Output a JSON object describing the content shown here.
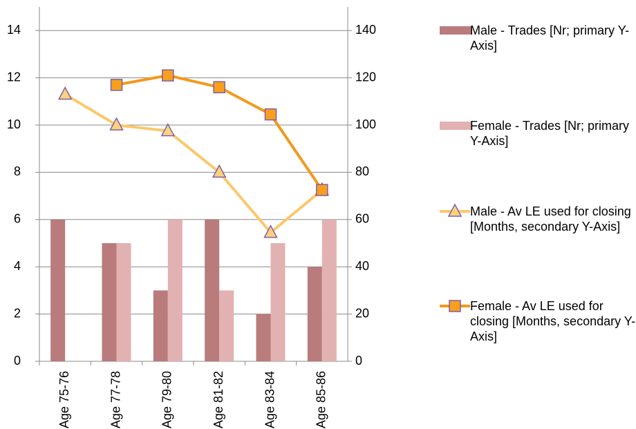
{
  "chart_data": {
    "type": "bar_line",
    "categories": [
      "Age 75-76",
      "Age 77-78",
      "Age 79-80",
      "Age 81-82",
      "Age 83-84",
      "Age 85-86"
    ],
    "series": [
      {
        "name": "Male - Trades [Nr; primary Y-Axis]",
        "type": "bar",
        "color": "#b97b7b",
        "values": [
          6,
          5,
          3,
          6,
          2,
          4
        ]
      },
      {
        "name": "Female - Trades [Nr; primary Y-Axis]",
        "type": "bar",
        "color": "#e2b1b1",
        "values": [
          null,
          5,
          6,
          3,
          5,
          6
        ]
      },
      {
        "name": "Male - Av LE used for closing [Months, secondary Y-Axis]",
        "type": "line",
        "axis": "y2",
        "marker": "triangle",
        "color": "#fcc86a",
        "marker_color": "#fdd27c",
        "values": [
          113,
          100,
          97.5,
          80,
          54.5,
          72.5
        ]
      },
      {
        "name": "Female - Av LE used for closing [Months, secondary Y-Axis]",
        "type": "line",
        "axis": "y2",
        "marker": "square",
        "color": "#f5981a",
        "marker_color": "#f8a01e",
        "values": [
          null,
          117,
          121,
          116,
          104.5,
          72.5
        ]
      }
    ],
    "ylim": [
      0,
      15
    ],
    "yticks": [
      0,
      2,
      4,
      6,
      8,
      10,
      12,
      14
    ],
    "y2lim": [
      0,
      150
    ],
    "y2ticks": [
      0,
      20,
      40,
      60,
      80,
      100,
      120,
      140
    ],
    "grid": true,
    "legend": "right"
  }
}
